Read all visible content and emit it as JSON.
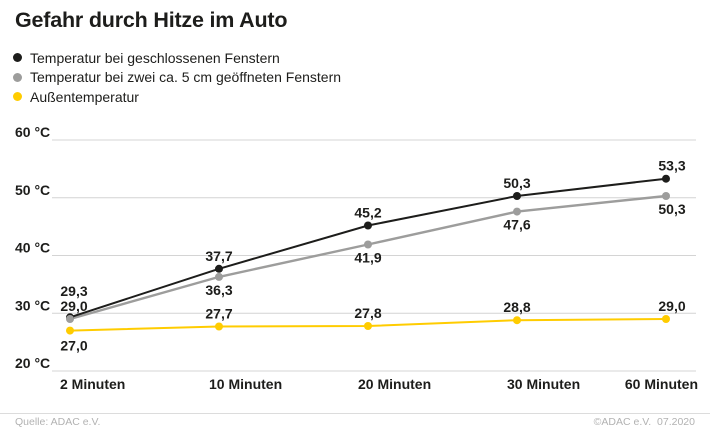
{
  "title": "Gefahr durch Hitze im Auto",
  "legend": {
    "items": [
      {
        "label": "Temperatur bei geschlossenen Fenstern",
        "color": "#1d1d1b"
      },
      {
        "label": "Temperatur bei zwei ca. 5 cm geöffneten Fenstern",
        "color": "#9d9d9c"
      },
      {
        "label": "Außentemperatur",
        "color": "#ffcc00"
      }
    ]
  },
  "chart_data": {
    "type": "line",
    "title": "Gefahr durch Hitze im Auto",
    "categories": [
      "2 Minuten",
      "10 Minuten",
      "20 Minuten",
      "30 Minuten",
      "60 Minuten"
    ],
    "x_minutes": [
      2,
      10,
      20,
      30,
      60
    ],
    "series": [
      {
        "name": "Temperatur bei geschlossenen Fenstern",
        "color": "#1d1d1b",
        "values": [
          29.3,
          37.7,
          45.2,
          50.3,
          53.3
        ],
        "labels": [
          "29,3",
          "37,7",
          "45,2",
          "50,3",
          "53,3"
        ]
      },
      {
        "name": "Temperatur bei zwei ca. 5 cm geöffneten Fenstern",
        "color": "#9d9d9c",
        "values": [
          29.0,
          36.3,
          41.9,
          47.6,
          50.3
        ],
        "labels": [
          "29,0",
          "36,3",
          "41,9",
          "47,6",
          "50,3"
        ]
      },
      {
        "name": "Außentemperatur",
        "color": "#ffcc00",
        "values": [
          27.0,
          27.7,
          27.8,
          28.8,
          29.0
        ],
        "labels": [
          "27,0",
          "27,7",
          "27,8",
          "28,8",
          "29,0"
        ]
      }
    ],
    "y_axis": {
      "min": 20,
      "max": 60,
      "ticks": [
        60,
        50,
        40,
        30,
        20
      ],
      "tick_labels": [
        "60 °C",
        "50 °C",
        "40 °C",
        "30 °C",
        "20 °C"
      ],
      "unit": "°C"
    },
    "grid": true,
    "legend_position": "top-left",
    "colors": {
      "grid_line": "#d4d4d4",
      "label_text": "#1d1d1b",
      "accent_yellow": "#ffcc00"
    }
  },
  "footer": {
    "source": "Quelle: ADAC e.V.",
    "copyright": "©ADAC e.V.  07.2020"
  }
}
